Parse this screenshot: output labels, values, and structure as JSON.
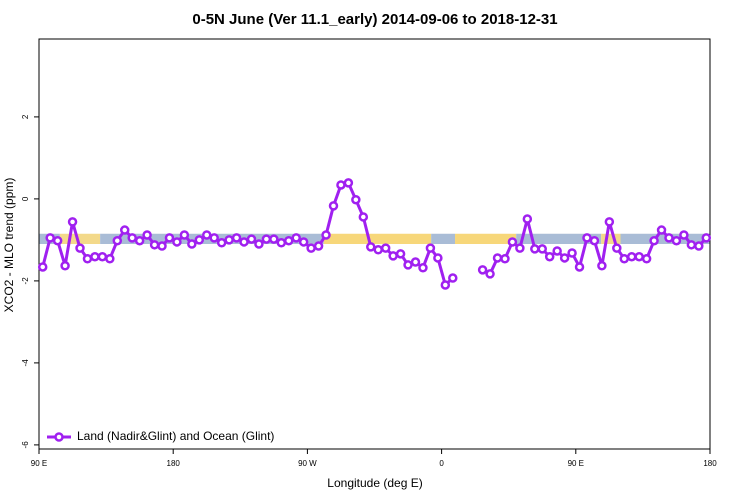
{
  "chart_data": {
    "type": "line",
    "title": "0-5N June (Ver 11.1_early)   2014-09-06 to 2018-12-31",
    "x_label": "Longitude (deg E)",
    "y_label": "XCO2 - MLO trend (ppm)",
    "xlim": [
      90,
      540
    ],
    "ylim": [
      -6.1,
      3.9
    ],
    "xticks": [
      {
        "value": 90,
        "label": "90 E"
      },
      180,
      {
        "value": 270,
        "label": "90 W"
      },
      {
        "value": 360,
        "label": "0"
      },
      {
        "value": 450,
        "label": "90 E"
      },
      {
        "value": 540,
        "label": "180"
      }
    ],
    "yticks": [
      -6,
      -4,
      -2,
      0,
      2
    ],
    "legend": "bottom-left",
    "band_ylim": [
      -1.1,
      -0.85
    ],
    "bands": [
      {
        "x0": 90,
        "x1": 104,
        "color": "#a9bcd6"
      },
      {
        "x0": 104,
        "x1": 131,
        "color": "#f3d98a"
      },
      {
        "x0": 131,
        "x1": 281,
        "color": "#a9bcd6"
      },
      {
        "x0": 281,
        "x1": 353,
        "color": "#f7d77a"
      },
      {
        "x0": 353,
        "x1": 369,
        "color": "#a9bcd6"
      },
      {
        "x0": 369,
        "x1": 410,
        "color": "#f7d77a"
      },
      {
        "x0": 410,
        "x1": 467,
        "color": "#a9bcd6"
      },
      {
        "x0": 467,
        "x1": 480,
        "color": "#f3d98a"
      },
      {
        "x0": 480,
        "x1": 540,
        "color": "#a9bcd6"
      }
    ],
    "x": [
      92.5,
      97.5,
      102.5,
      107.5,
      112.5,
      117.5,
      122.5,
      127.5,
      132.5,
      137.5,
      142.5,
      147.5,
      152.5,
      157.5,
      162.5,
      167.5,
      172.5,
      177.5,
      182.5,
      187.5,
      192.5,
      197.5,
      202.5,
      207.5,
      212.5,
      217.5,
      222.5,
      227.5,
      232.5,
      237.5,
      242.5,
      247.5,
      252.5,
      257.5,
      262.5,
      267.5,
      272.5,
      277.5,
      282.5,
      287.5,
      292.5,
      297.5,
      302.5,
      307.5,
      312.5,
      317.5,
      322.5,
      327.5,
      332.5,
      337.5,
      342.5,
      347.5,
      352.5,
      357.5,
      362.5,
      367.5,
      372.5,
      377.5,
      382.5,
      387.5,
      392.5,
      397.5,
      402.5,
      407.5,
      412.5,
      417.5,
      422.5,
      427.5,
      432.5,
      437.5,
      442.5,
      447.5,
      452.5,
      457.5,
      462.5,
      467.5,
      472.5,
      477.5,
      482.5,
      487.5,
      492.5,
      497.5,
      502.5,
      507.5,
      512.5,
      517.5,
      522.5,
      527.5,
      532.5,
      537.5
    ],
    "series": [
      {
        "name": "Land (Nadir&Glint) and Ocean (Glint)",
        "color": "#a020f0",
        "values": [
          -1.66,
          -0.95,
          -1.02,
          -1.63,
          -0.56,
          -1.2,
          -1.46,
          -1.41,
          -1.41,
          -1.46,
          -1.02,
          -0.76,
          -0.95,
          -1.02,
          -0.88,
          -1.12,
          -1.15,
          -0.95,
          -1.05,
          -0.88,
          -1.1,
          -1.0,
          -0.88,
          -0.95,
          -1.07,
          -1.0,
          -0.95,
          -1.05,
          -0.98,
          -1.1,
          -0.98,
          -0.98,
          -1.07,
          -1.02,
          -0.95,
          -1.05,
          -1.2,
          -1.15,
          -0.88,
          -0.17,
          0.34,
          0.39,
          -0.02,
          -0.44,
          -1.17,
          -1.24,
          -1.2,
          -1.39,
          -1.34,
          -1.61,
          -1.54,
          -1.68,
          -1.2,
          -1.44,
          -2.1,
          -1.93,
          null,
          null,
          null,
          -1.73,
          -1.83,
          -1.44,
          -1.46,
          -1.05,
          -1.2,
          -0.49,
          -1.22,
          -1.22,
          -1.41,
          -1.27,
          -1.44,
          -1.32,
          -1.66,
          -0.95,
          -1.02,
          -1.63,
          -0.56,
          -1.2,
          -1.46,
          -1.41,
          -1.41,
          -1.46,
          -1.02,
          -0.76,
          -0.95,
          -1.02,
          -0.88,
          -1.12,
          -1.15,
          -0.95
        ]
      }
    ]
  }
}
